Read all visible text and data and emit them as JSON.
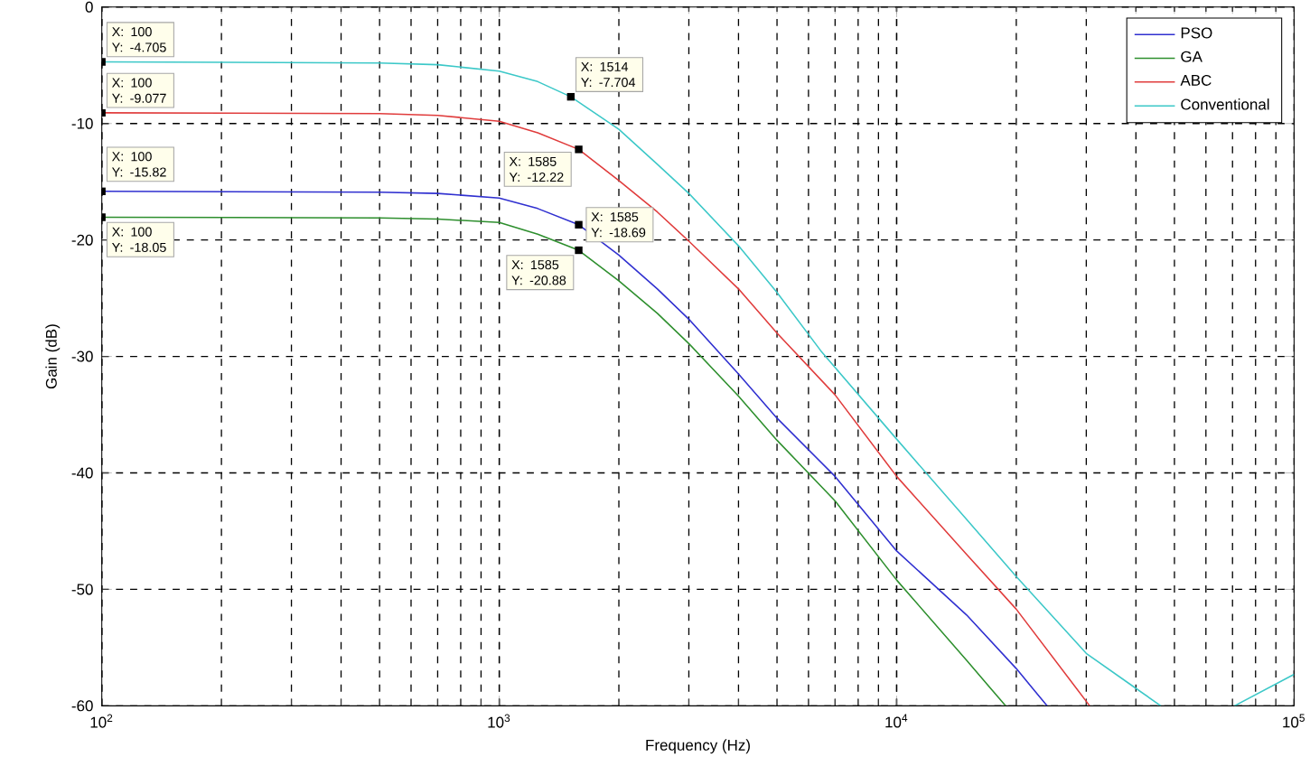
{
  "chart_data": {
    "type": "line",
    "xlabel": "Frequency (Hz)",
    "ylabel": "Gain (dB)",
    "log": "x",
    "xlim": [
      100,
      100000
    ],
    "ylim": [
      -60,
      0
    ],
    "xticks": [
      {
        "value": 100,
        "label": "10$^{2}$"
      },
      {
        "value": 1000,
        "label": "10$^{3}$"
      },
      {
        "value": 10000,
        "label": "10$^{4}$"
      },
      {
        "value": 100000,
        "label": "10$^{5}$"
      }
    ],
    "yticks": [
      -60,
      -50,
      -40,
      -30,
      -20,
      -10,
      0
    ],
    "grid": true,
    "legend": "top right",
    "line_style": "solid",
    "series": [
      {
        "name": "PSO",
        "color": "#3030d0",
        "x": [
          100,
          500,
          700,
          1000,
          1250,
          1585,
          2000,
          2500,
          3000,
          4000,
          5000,
          7000,
          10000,
          15000,
          20000,
          23900
        ],
        "values": [
          -15.82,
          -15.9,
          -16.0,
          -16.4,
          -17.3,
          -18.69,
          -21.3,
          -24.2,
          -26.8,
          -31.5,
          -35.3,
          -40.3,
          -46.7,
          -52.2,
          -56.8,
          -60
        ]
      },
      {
        "name": "GA",
        "color": "#2e8f2e",
        "x": [
          100,
          500,
          700,
          1000,
          1250,
          1585,
          2000,
          2500,
          3000,
          4000,
          5000,
          7000,
          10000,
          15000,
          18800
        ],
        "values": [
          -18.05,
          -18.1,
          -18.2,
          -18.5,
          -19.5,
          -20.88,
          -23.5,
          -26.3,
          -28.9,
          -33.4,
          -37.2,
          -42.4,
          -49.2,
          -56.1,
          -60
        ]
      },
      {
        "name": "ABC",
        "color": "#e03c3c",
        "x": [
          100,
          500,
          700,
          1000,
          1250,
          1585,
          2000,
          2500,
          3000,
          4000,
          5000,
          7000,
          10000,
          15000,
          20000,
          30600
        ],
        "values": [
          -9.077,
          -9.15,
          -9.3,
          -9.8,
          -10.8,
          -12.22,
          -14.9,
          -17.6,
          -20.1,
          -24.2,
          -28.0,
          -33.3,
          -40.3,
          -47.0,
          -51.7,
          -60
        ]
      },
      {
        "name": "Conventional",
        "color": "#3cc8c8",
        "x": [
          100,
          500,
          700,
          1000,
          1250,
          1514,
          2000,
          2500,
          3000,
          4000,
          5000,
          6440,
          10000,
          15000,
          20000,
          30000,
          40000,
          46200,
          55000,
          70800,
          100000
        ],
        "values": [
          -4.705,
          -4.8,
          -4.95,
          -5.5,
          -6.4,
          -7.704,
          -10.5,
          -13.5,
          -16.0,
          -20.5,
          -24.5,
          -29.5,
          -37.1,
          -44.0,
          -48.9,
          -55.5,
          -58.5,
          -60,
          null,
          -60,
          -57.3
        ]
      }
    ],
    "annotations": [
      {
        "text": "X: 100 Y: -4.705",
        "x": 100,
        "y": -4.705
      },
      {
        "text": "X: 100 Y: -9.077",
        "x": 100,
        "y": -9.077
      },
      {
        "text": "X: 100 Y: -15.82",
        "x": 100,
        "y": -15.82
      },
      {
        "text": "X: 100 Y: -18.05",
        "x": 100,
        "y": -18.05
      },
      {
        "text": "X: 1514 Y: -7.704",
        "x": 1514,
        "y": -7.704
      },
      {
        "text": "X: 1585 Y: -12.22",
        "x": 1585,
        "y": -12.22
      },
      {
        "text": "X: 1585 Y: -18.69",
        "x": 1585,
        "y": -18.69
      },
      {
        "text": "X: 1585 Y: -20.88",
        "x": 1585,
        "y": -20.88
      }
    ]
  }
}
